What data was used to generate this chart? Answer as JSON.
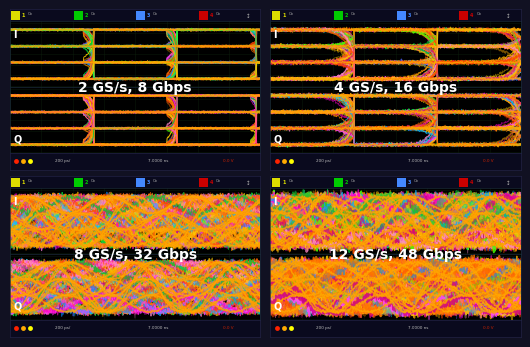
{
  "panels": [
    {
      "label": "2 GS/s, 8 Gbps",
      "style": 0
    },
    {
      "label": "4 GS/s, 16 Gbps",
      "style": 1
    },
    {
      "label": "8 GS/s, 32 Gbps",
      "style": 2
    },
    {
      "label": "12 GS/s, 48 Gbps",
      "style": 3
    }
  ],
  "bg_eye": "#000000",
  "bg_header": "#0a0a1e",
  "bg_footer": "#0a0a1e",
  "outer_bg": "#111122",
  "text_color": "#ffffff",
  "label_fontsize": 10,
  "grid_color": "#1a2a1a",
  "colors_warm": [
    "#ff8800",
    "#ffcc00",
    "#ff4400",
    "#ff6600",
    "#ffaa00"
  ],
  "colors_hot": [
    "#ff00cc",
    "#ff44ff",
    "#cc0088",
    "#ff88cc"
  ],
  "colors_cool": [
    "#0088ff",
    "#00ccff",
    "#4466ff",
    "#00aaff"
  ],
  "colors_green": [
    "#00ff44",
    "#00cc33",
    "#44ff00"
  ],
  "header_ch_colors": [
    "#dddd00",
    "#00cc00",
    "#4488ff",
    "#cc0000"
  ],
  "footer_dot_colors": [
    "#ff2200",
    "#ffaa00",
    "#ffff00"
  ],
  "noise_levels": [
    0.025,
    0.05,
    0.09,
    0.13
  ],
  "n_traces": [
    120,
    120,
    120,
    120
  ],
  "levels_4": [
    -0.82,
    -0.27,
    0.27,
    0.82
  ],
  "transition_steepness_range": [
    [
      15,
      60
    ],
    [
      8,
      30
    ],
    [
      5,
      18
    ],
    [
      4,
      12
    ]
  ]
}
